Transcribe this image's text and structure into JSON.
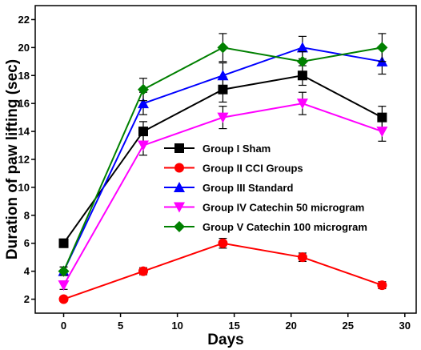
{
  "chart_data": {
    "type": "line",
    "xlabel": "Days",
    "ylabel": "Duration of paw lifting (sec)",
    "xlim": [
      -2.5,
      31
    ],
    "ylim": [
      1,
      23
    ],
    "xticks": [
      0,
      5,
      10,
      15,
      20,
      25,
      30
    ],
    "yticks": [
      2,
      4,
      6,
      8,
      10,
      12,
      14,
      16,
      18,
      20,
      22
    ],
    "x": [
      0,
      7,
      14,
      21,
      28
    ],
    "grid": false,
    "legend_position": "center-right",
    "series": [
      {
        "name": "Group I Sham",
        "color": "#000000",
        "marker": "square",
        "values": [
          6,
          14,
          17,
          18,
          15
        ],
        "errors": [
          0.3,
          0.7,
          0.9,
          0.7,
          0.8
        ]
      },
      {
        "name": "Group II CCI Groups",
        "color": "#ff0000",
        "marker": "circle",
        "values": [
          2,
          4,
          6,
          5,
          3
        ],
        "errors": [
          0.15,
          0.25,
          0.35,
          0.3,
          0.25
        ]
      },
      {
        "name": "Group III Standard",
        "color": "#0000ff",
        "marker": "triangle-up",
        "values": [
          4,
          16,
          18,
          20,
          19
        ],
        "errors": [
          0.3,
          0.8,
          0.9,
          0.8,
          0.9
        ]
      },
      {
        "name": "Group IV Catechin 50 microgram",
        "color": "#ff00ff",
        "marker": "triangle-down",
        "values": [
          3,
          13,
          15,
          16,
          14
        ],
        "errors": [
          0.3,
          0.7,
          0.8,
          0.8,
          0.7
        ]
      },
      {
        "name": "Group V Catechin 100 microgram",
        "color": "#008000",
        "marker": "diamond",
        "values": [
          4,
          17,
          20,
          19,
          20
        ],
        "errors": [
          0.3,
          0.8,
          1.0,
          0.7,
          1.0
        ]
      }
    ]
  }
}
